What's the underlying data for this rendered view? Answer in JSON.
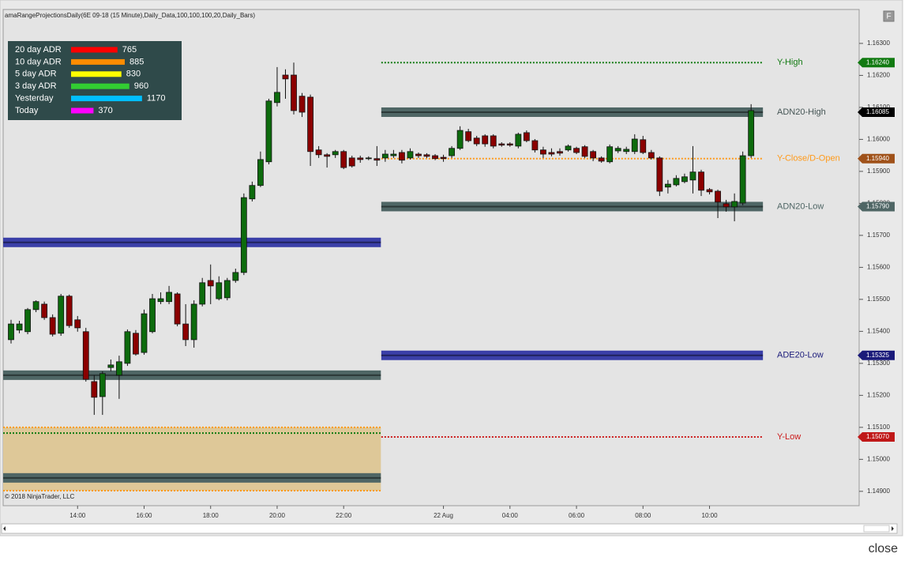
{
  "header": {
    "title": "amaRangeProjectionsDaily(6E 09-18 (15 Minute),Daily_Data,100,100,100,20,Daily_Bars)",
    "copyright": "© 2018 NinjaTrader, LLC",
    "button": "F",
    "close": "close"
  },
  "adr_table": {
    "rows": [
      {
        "label": "20 day ADR",
        "value": 765,
        "color": "#ff0000"
      },
      {
        "label": "10 day ADR",
        "value": 885,
        "color": "#ff8c00"
      },
      {
        "label": "5 day ADR",
        "value": 830,
        "color": "#ffff00"
      },
      {
        "label": "3 day ADR",
        "value": 960,
        "color": "#32cd32"
      },
      {
        "label": "Yesterday",
        "value": 1170,
        "color": "#00bfff"
      },
      {
        "label": "Today",
        "value": 370,
        "color": "#ff00ff"
      }
    ]
  },
  "chart_data": {
    "type": "candlestick",
    "categories": [
      null,
      null,
      null,
      null,
      null,
      null,
      null,
      null,
      "14:00",
      null,
      null,
      null,
      null,
      null,
      null,
      null,
      "16:00",
      null,
      null,
      null,
      null,
      null,
      null,
      null,
      "18:00",
      null,
      null,
      null,
      null,
      null,
      null,
      null,
      "20:00",
      null,
      null,
      null,
      null,
      null,
      null,
      null,
      "22:00",
      null,
      null,
      null,
      null,
      null,
      null,
      null,
      null,
      null,
      null,
      null,
      "22 Aug",
      null,
      null,
      null,
      null,
      null,
      null,
      null,
      "04:00",
      null,
      null,
      null,
      null,
      null,
      null,
      null,
      "06:00",
      null,
      null,
      null,
      null,
      null,
      null,
      null,
      "08:00",
      null,
      null,
      null,
      null,
      null,
      null,
      null,
      "10:00",
      null,
      null,
      null,
      null,
      null
    ],
    "open": [
      1.15374,
      1.15404,
      1.15399,
      1.15468,
      1.15485,
      1.15443,
      1.15394,
      1.1551,
      1.15436,
      1.15399,
      1.15243,
      1.15196,
      1.15287,
      1.15263,
      1.153,
      1.15394,
      1.15334,
      1.15399,
      1.15493,
      1.15493,
      1.15517,
      1.15423,
      1.15374,
      1.15485,
      1.15559,
      1.15502,
      1.15505,
      1.15559,
      1.15584,
      1.15814,
      1.15856,
      1.1593,
      1.16115,
      1.16201,
      1.16201,
      1.16135,
      1.16132,
      1.15967,
      1.15952,
      1.15952,
      1.15962,
      1.15942,
      1.15942,
      1.1594,
      1.1594,
      1.15942,
      1.15949,
      1.15959,
      1.15942,
      1.15954,
      1.15952,
      1.15949,
      1.15944,
      1.15949,
      1.15972,
      1.16024,
      1.16004,
      1.16011,
      1.16011,
      1.15986,
      1.15986,
      1.15979,
      1.16021,
      1.15996,
      1.15967,
      1.15959,
      1.15962,
      1.15967,
      1.15972,
      1.15977,
      1.15962,
      1.15942,
      1.1593,
      1.15964,
      1.15962,
      1.15962,
      1.15999,
      1.15959,
      1.15942,
      1.15851,
      1.15858,
      1.15868,
      1.15873,
      1.15898,
      1.15843,
      1.15838,
      1.15799,
      1.15789,
      1.15801,
      1.15949
    ],
    "high": [
      1.15436,
      1.15433,
      1.15473,
      1.15497,
      1.15493,
      1.15453,
      1.15517,
      1.15515,
      1.15448,
      1.15411,
      1.15263,
      1.15275,
      1.15312,
      1.15324,
      1.15406,
      1.15404,
      1.15468,
      1.15517,
      1.15522,
      1.15542,
      1.15522,
      1.15485,
      1.15497,
      1.15567,
      1.15609,
      1.15572,
      1.15567,
      1.15596,
      1.15831,
      1.15868,
      1.15962,
      1.16127,
      1.16226,
      1.16219,
      1.1624,
      1.16145,
      1.1614,
      1.15979,
      1.15957,
      1.15967,
      1.15967,
      1.15949,
      1.15949,
      1.15947,
      1.15979,
      1.15967,
      1.15967,
      1.15967,
      1.15972,
      1.15959,
      1.15957,
      1.15954,
      1.15952,
      1.15979,
      1.16041,
      1.16033,
      1.16011,
      1.16016,
      1.16016,
      1.15991,
      1.15991,
      1.16021,
      1.16028,
      1.16001,
      1.15977,
      1.15972,
      1.15972,
      1.15984,
      1.15977,
      1.15982,
      1.15967,
      1.15947,
      1.15984,
      1.15979,
      1.15977,
      1.16016,
      1.16011,
      1.15967,
      1.15947,
      1.15873,
      1.15888,
      1.15893,
      1.15979,
      1.15905,
      1.15848,
      1.15843,
      1.15811,
      1.15831,
      1.15962,
      1.1611
    ],
    "low": [
      1.15362,
      1.15394,
      1.15391,
      1.1546,
      1.15436,
      1.15384,
      1.15386,
      1.15411,
      1.15399,
      1.15243,
      1.15139,
      1.15139,
      1.15275,
      1.15189,
      1.15292,
      1.15324,
      1.15327,
      1.15394,
      1.15485,
      1.15485,
      1.15416,
      1.15354,
      1.15349,
      1.15478,
      1.15485,
      1.15497,
      1.15497,
      1.15552,
      1.15576,
      1.15806,
      1.15851,
      1.15922,
      1.16103,
      1.16127,
      1.16078,
      1.1607,
      1.15917,
      1.15942,
      1.15912,
      1.15942,
      1.15907,
      1.15912,
      1.15927,
      1.15935,
      1.15917,
      1.1593,
      1.15942,
      1.15925,
      1.15937,
      1.15942,
      1.15942,
      1.15935,
      1.1593,
      1.15942,
      1.15967,
      1.15991,
      1.15979,
      1.15977,
      1.15972,
      1.15977,
      1.15977,
      1.15972,
      1.15991,
      1.15959,
      1.15942,
      1.15947,
      1.15949,
      1.15962,
      1.15954,
      1.15942,
      1.15932,
      1.15927,
      1.15925,
      1.15957,
      1.15954,
      1.15954,
      1.15954,
      1.15937,
      1.15823,
      1.15831,
      1.15853,
      1.15863,
      1.15831,
      1.15823,
      1.15828,
      1.15754,
      1.15774,
      1.15744,
      1.15794,
      1.15942
    ],
    "close": [
      1.15423,
      1.15423,
      1.15468,
      1.15493,
      1.15443,
      1.15391,
      1.1551,
      1.15418,
      1.15411,
      1.1525,
      1.15194,
      1.15268,
      1.15295,
      1.15305,
      1.15399,
      1.15329,
      1.15455,
      1.15502,
      1.15502,
      1.15522,
      1.15423,
      1.15374,
      1.15485,
      1.15552,
      1.15542,
      1.15552,
      1.15559,
      1.15584,
      1.15818,
      1.15856,
      1.15937,
      1.1612,
      1.16147,
      1.16189,
      1.1609,
      1.16085,
      1.15962,
      1.15952,
      1.15947,
      1.15962,
      1.15912,
      1.15917,
      1.15937,
      1.15942,
      1.15935,
      1.15954,
      1.15954,
      1.15935,
      1.15962,
      1.15949,
      1.15947,
      1.1594,
      1.1594,
      1.15972,
      1.16028,
      1.15996,
      1.15986,
      1.15986,
      1.15979,
      1.15982,
      1.15982,
      1.16016,
      1.15996,
      1.15967,
      1.15954,
      1.15954,
      1.15957,
      1.15979,
      1.15959,
      1.15947,
      1.15942,
      1.15932,
      1.15977,
      1.15972,
      1.15969,
      1.16001,
      1.15959,
      1.15942,
      1.15838,
      1.1586,
      1.15878,
      1.15883,
      1.15898,
      1.15841,
      1.15836,
      1.15804,
      1.15789,
      1.15806,
      1.15949,
      1.1609
    ],
    "up_color": "#0d6b0d",
    "down_color": "#8b0000",
    "ylim": [
      1.14865,
      1.16406
    ],
    "yticks": [
      {
        "value": 1.149,
        "label": "1.14900"
      },
      {
        "value": 1.15,
        "label": "1.15000"
      },
      {
        "value": 1.151,
        "label": "1.15100"
      },
      {
        "value": 1.152,
        "label": "1.15200"
      },
      {
        "value": 1.153,
        "label": "1.15300"
      },
      {
        "value": 1.154,
        "label": "1.15400"
      },
      {
        "value": 1.155,
        "label": "1.15500"
      },
      {
        "value": 1.156,
        "label": "1.15600"
      },
      {
        "value": 1.157,
        "label": "1.15700"
      },
      {
        "value": 1.158,
        "label": "1.15800"
      },
      {
        "value": 1.159,
        "label": "1.15900"
      },
      {
        "value": 1.16,
        "label": "1.16000"
      },
      {
        "value": 1.161,
        "label": "1.16100"
      },
      {
        "value": 1.162,
        "label": "1.16200"
      },
      {
        "value": 1.163,
        "label": "1.16300"
      }
    ],
    "levels": [
      {
        "name": "Y-High",
        "value": 1.1624,
        "value_label": "1.16240",
        "style": "dotted",
        "color": "#117a11",
        "tag_color": "#117a11"
      },
      {
        "name": "ADN20-High",
        "value": 1.16085,
        "value_label": "1.16085",
        "style": "band",
        "color": "#4f6665",
        "tag_color": "#000000"
      },
      {
        "name": "Y-Close/D-Open",
        "value": 1.1594,
        "value_label": "1.15940",
        "style": "dotted",
        "color": "#ff9a1a",
        "tag_color": "#a0521a"
      },
      {
        "name": "ADN20-Low",
        "value": 1.1579,
        "value_label": "1.15790",
        "style": "band",
        "color": "#4f6665",
        "tag_color": "#4f6665"
      },
      {
        "name": "ADE20-Low",
        "value": 1.15325,
        "value_label": "1.15325",
        "style": "band",
        "color": "#3a3fa8",
        "tag_color": "#1a1a7a"
      },
      {
        "name": "Y-Low",
        "value": 1.1507,
        "value_label": "1.15070",
        "style": "dotted",
        "color": "#cc1a1a",
        "tag_color": "#c01818"
      }
    ],
    "prior_zone": {
      "from": 1.14902,
      "to": 1.151,
      "color": "#dec898",
      "edge_color": "#ff9a1a"
    },
    "prior_levels": [
      {
        "value": 1.15678,
        "style": "band",
        "color": "#3a3fa8"
      },
      {
        "value": 1.15263,
        "style": "band",
        "color": "#4f6665"
      },
      {
        "value": 1.15082,
        "style": "dotted",
        "color": "#117a11"
      },
      {
        "value": 1.14942,
        "style": "band",
        "color": "#4f6665"
      }
    ]
  }
}
